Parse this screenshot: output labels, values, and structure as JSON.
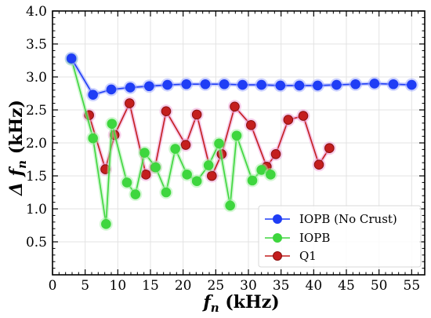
{
  "chart_data": {
    "type": "line",
    "xlabel_main": "f",
    "xlabel_sub": "n",
    "xlabel_unit": " (kHz)",
    "ylabel_main": "Δ f",
    "ylabel_sub": "n",
    "ylabel_unit": " (kHz)",
    "xlim": [
      0,
      57
    ],
    "ylim": [
      0.0,
      4.0
    ],
    "xticks": [
      0,
      5,
      10,
      15,
      20,
      25,
      30,
      35,
      40,
      45,
      50,
      55
    ],
    "yticks": [
      0.5,
      1.0,
      1.5,
      2.0,
      2.5,
      3.0,
      3.5,
      4.0
    ],
    "ytick_labels": [
      "0.5",
      "1.0",
      "1.5",
      "2.0",
      "2.5",
      "3.0",
      "3.5",
      "4.0"
    ],
    "grid": true,
    "legend_position": "bottom-right",
    "series": [
      {
        "name": "IOPB (No Crust)",
        "color": "#1f3df5",
        "glow": "#9aa6ff",
        "points": [
          [
            2.9,
            3.28
          ],
          [
            6.2,
            2.73
          ],
          [
            9.0,
            2.81
          ],
          [
            11.9,
            2.84
          ],
          [
            14.8,
            2.86
          ],
          [
            17.6,
            2.88
          ],
          [
            20.5,
            2.89
          ],
          [
            23.4,
            2.89
          ],
          [
            26.3,
            2.89
          ],
          [
            29.1,
            2.88
          ],
          [
            32.0,
            2.88
          ],
          [
            34.9,
            2.87
          ],
          [
            37.8,
            2.87
          ],
          [
            40.6,
            2.87
          ],
          [
            43.5,
            2.88
          ],
          [
            46.4,
            2.89
          ],
          [
            49.3,
            2.9
          ],
          [
            52.2,
            2.89
          ],
          [
            55.0,
            2.88
          ]
        ]
      },
      {
        "name": "IOPB",
        "color": "#3ed63e",
        "glow": "#a8f0a8",
        "points": [
          [
            2.9,
            3.27
          ],
          [
            6.2,
            2.07
          ],
          [
            8.2,
            0.77
          ],
          [
            9.1,
            2.29
          ],
          [
            11.4,
            1.4
          ],
          [
            12.7,
            1.22
          ],
          [
            14.1,
            1.85
          ],
          [
            15.8,
            1.63
          ],
          [
            17.4,
            1.25
          ],
          [
            18.8,
            1.91
          ],
          [
            20.6,
            1.52
          ],
          [
            22.1,
            1.42
          ],
          [
            23.9,
            1.66
          ],
          [
            25.5,
            1.99
          ],
          [
            27.2,
            1.05
          ],
          [
            28.2,
            2.11
          ],
          [
            30.6,
            1.43
          ],
          [
            32.0,
            1.59
          ],
          [
            33.4,
            1.52
          ]
        ]
      },
      {
        "name": "Q1",
        "color": "#c41e1e",
        "glow": "#ef9fd8",
        "points": [
          [
            5.6,
            2.42
          ],
          [
            8.1,
            1.6
          ],
          [
            9.5,
            2.12
          ],
          [
            11.8,
            2.6
          ],
          [
            14.3,
            1.52
          ],
          [
            15.7,
            1.63
          ],
          [
            17.4,
            2.48
          ],
          [
            20.4,
            1.97
          ],
          [
            22.1,
            2.43
          ],
          [
            24.4,
            1.5
          ],
          [
            25.9,
            1.83
          ],
          [
            27.9,
            2.55
          ],
          [
            30.4,
            2.27
          ],
          [
            32.8,
            1.64
          ],
          [
            34.2,
            1.83
          ],
          [
            36.1,
            2.35
          ],
          [
            38.4,
            2.41
          ],
          [
            40.8,
            1.67
          ],
          [
            42.4,
            1.92
          ]
        ]
      }
    ]
  }
}
